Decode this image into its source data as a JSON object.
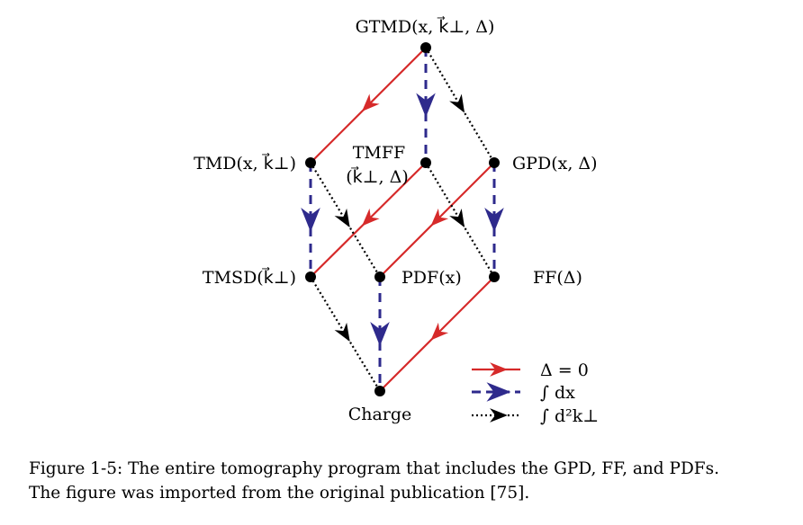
{
  "nodes": {
    "gtmd": "GTMD(x, k⃗⊥, Δ)",
    "tmd": "TMD(x, k⃗⊥)",
    "tmff_line1": "TMFF",
    "tmff_line2": "(k⃗⊥, Δ)",
    "gpd": "GPD(x, Δ)",
    "tmsd": "TMSD(k⃗⊥)",
    "pdf": "PDF(x)",
    "ff": "FF(Δ)",
    "charge": "Charge"
  },
  "legend": {
    "delta_zero": "Δ = 0",
    "integral_dx": "∫ dx",
    "integral_d2k": "∫ d²k⊥"
  },
  "caption": {
    "line1": "Figure 1-5: The entire tomography program that includes the GPD, FF, and PDFs.",
    "line2": "The figure was imported from the original publication [75]."
  },
  "colors": {
    "delta_zero": "#d62a2a",
    "integral_dx": "#2e2a8c",
    "integral_d2k": "#000000"
  }
}
